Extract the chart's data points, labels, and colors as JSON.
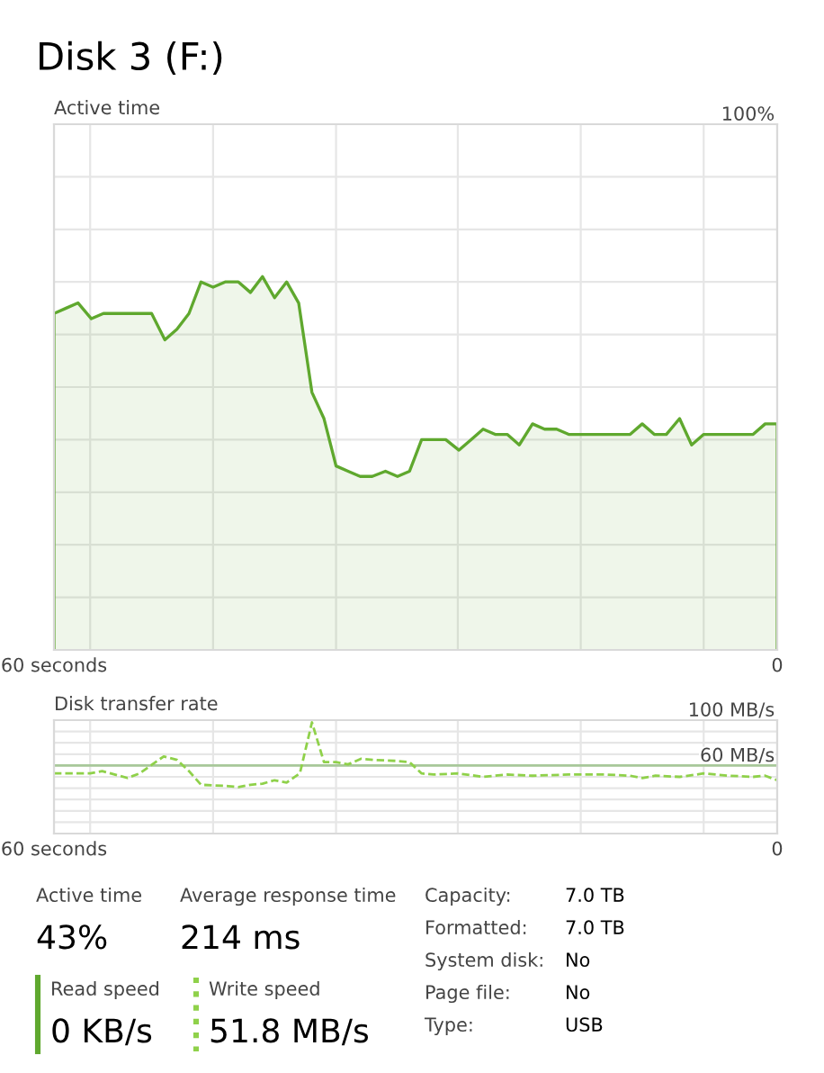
{
  "chart_data": [
    {
      "type": "area",
      "title": "Disk 3 (F:)",
      "subtitle": "Active time",
      "x": [
        60.0,
        59.0,
        58.0,
        56.9,
        55.9,
        54.9,
        53.9,
        52.9,
        51.9,
        50.8,
        49.8,
        48.8,
        47.8,
        46.8,
        45.8,
        44.7,
        43.7,
        42.7,
        41.7,
        40.7,
        39.7,
        38.6,
        37.6,
        36.6,
        35.6,
        34.6,
        33.6,
        32.5,
        31.5,
        30.5,
        29.5,
        28.5,
        27.5,
        26.4,
        25.4,
        24.4,
        23.4,
        22.4,
        21.4,
        20.3,
        19.3,
        18.3,
        17.3,
        16.3,
        15.3,
        14.2,
        13.2,
        12.2,
        11.2,
        10.2,
        9.2,
        8.1,
        7.1,
        6.1,
        5.1,
        4.1,
        3.1,
        2.0,
        1.0,
        0.0
      ],
      "series": [
        {
          "color": "#5fa82e",
          "values": [
            64,
            65,
            66,
            63,
            64,
            64,
            64,
            64,
            64,
            59,
            61,
            64,
            70,
            69,
            70,
            70,
            68,
            71,
            67,
            70,
            66,
            49,
            44,
            35,
            34,
            33,
            33,
            34,
            33,
            34,
            40,
            40,
            40,
            38,
            40,
            42,
            41,
            41,
            39,
            43,
            42,
            42,
            41,
            41,
            41,
            41,
            41,
            41,
            43,
            41,
            41,
            44,
            39,
            41,
            41,
            41,
            41,
            41,
            43,
            43
          ]
        }
      ],
      "xlim": [
        60,
        0
      ],
      "ylim": [
        0,
        100
      ],
      "xticks": [
        {
          "value": 60,
          "label": "60 seconds"
        },
        {
          "value": 57,
          "label": null
        },
        {
          "value": 46.8,
          "label": null
        },
        {
          "value": 36.6,
          "label": null
        },
        {
          "value": 26.5,
          "label": null
        },
        {
          "value": 16.3,
          "label": null
        },
        {
          "value": 6.1,
          "label": null
        },
        {
          "value": 0,
          "label": "0"
        }
      ],
      "yticks": [
        {
          "value": 0,
          "label": null
        },
        {
          "value": 10,
          "label": null
        },
        {
          "value": 20,
          "label": null
        },
        {
          "value": 30,
          "label": null
        },
        {
          "value": 40,
          "label": null
        },
        {
          "value": 50,
          "label": null
        },
        {
          "value": 60,
          "label": null
        },
        {
          "value": 70,
          "label": null
        },
        {
          "value": 80,
          "label": null
        },
        {
          "value": 90,
          "label": null
        },
        {
          "value": 100,
          "label": "100%"
        }
      ],
      "grid": true
    },
    {
      "type": "line",
      "subtitle": "Disk transfer rate",
      "series": [
        {
          "color": "#8fd14a",
          "line_style": "dashed",
          "x": [
            60,
            57.0,
            56.0,
            53.9,
            52.9,
            50.9,
            49.8,
            48.8,
            47.8,
            45.8,
            44.7,
            43.7,
            42.7,
            41.7,
            40.7,
            39.6,
            38.6,
            37.6,
            36.6,
            35.6,
            34.5,
            33.5,
            31.5,
            30.5,
            29.5,
            28.5,
            26.5,
            24.4,
            22.4,
            20.3,
            17.3,
            14.2,
            12.2,
            11.2,
            10.1,
            8.1,
            6.1,
            4.0,
            2.0,
            1.0,
            0
          ],
          "values": [
            53,
            53,
            55,
            49,
            53,
            68,
            65,
            55,
            43,
            42,
            41,
            43,
            44,
            47,
            45,
            53,
            98,
            63,
            63,
            61,
            66,
            65,
            64,
            63,
            53,
            52,
            53,
            50,
            52,
            51,
            52,
            52,
            51,
            49,
            51,
            50,
            53,
            51,
            50,
            51,
            47
          ]
        }
      ],
      "xlim": [
        60,
        0
      ],
      "ylim": [
        0,
        100
      ],
      "xticks": [
        {
          "value": 60,
          "label": "60 seconds"
        },
        {
          "value": 57,
          "label": null
        },
        {
          "value": 46.8,
          "label": null
        },
        {
          "value": 36.6,
          "label": null
        },
        {
          "value": 26.5,
          "label": null
        },
        {
          "value": 16.3,
          "label": null
        },
        {
          "value": 6.1,
          "label": null
        },
        {
          "value": 0,
          "label": "0"
        }
      ],
      "yticks": [
        {
          "value": 0,
          "label": null
        },
        {
          "value": 10,
          "label": null
        },
        {
          "value": 20,
          "label": null
        },
        {
          "value": 30,
          "label": null
        },
        {
          "value": 40,
          "label": null
        },
        {
          "value": 50,
          "label": null
        },
        {
          "value": 60,
          "label": "60 MB/s"
        },
        {
          "value": 70,
          "label": null
        },
        {
          "value": 80,
          "label": null
        },
        {
          "value": 90,
          "label": null
        },
        {
          "value": 100,
          "label": "100 MB/s"
        }
      ],
      "ref_lines": [
        {
          "axis": "y",
          "value": 60,
          "color": "#a8c89a"
        }
      ],
      "grid": true
    },
    {
      "type": "other",
      "colors": [
        "#5fa82e",
        "#8fd14a"
      ],
      "annotations": [
        "Active time",
        "43%",
        "Average response time",
        "214 ms",
        "Read speed",
        "0 KB/s",
        "Write speed",
        "51.8 MB/s",
        "Capacity:",
        "7.0 TB",
        "Formatted:",
        "7.0 TB",
        "System disk:",
        "No",
        "Page file:",
        "No",
        "Type:",
        "USB"
      ]
    }
  ]
}
